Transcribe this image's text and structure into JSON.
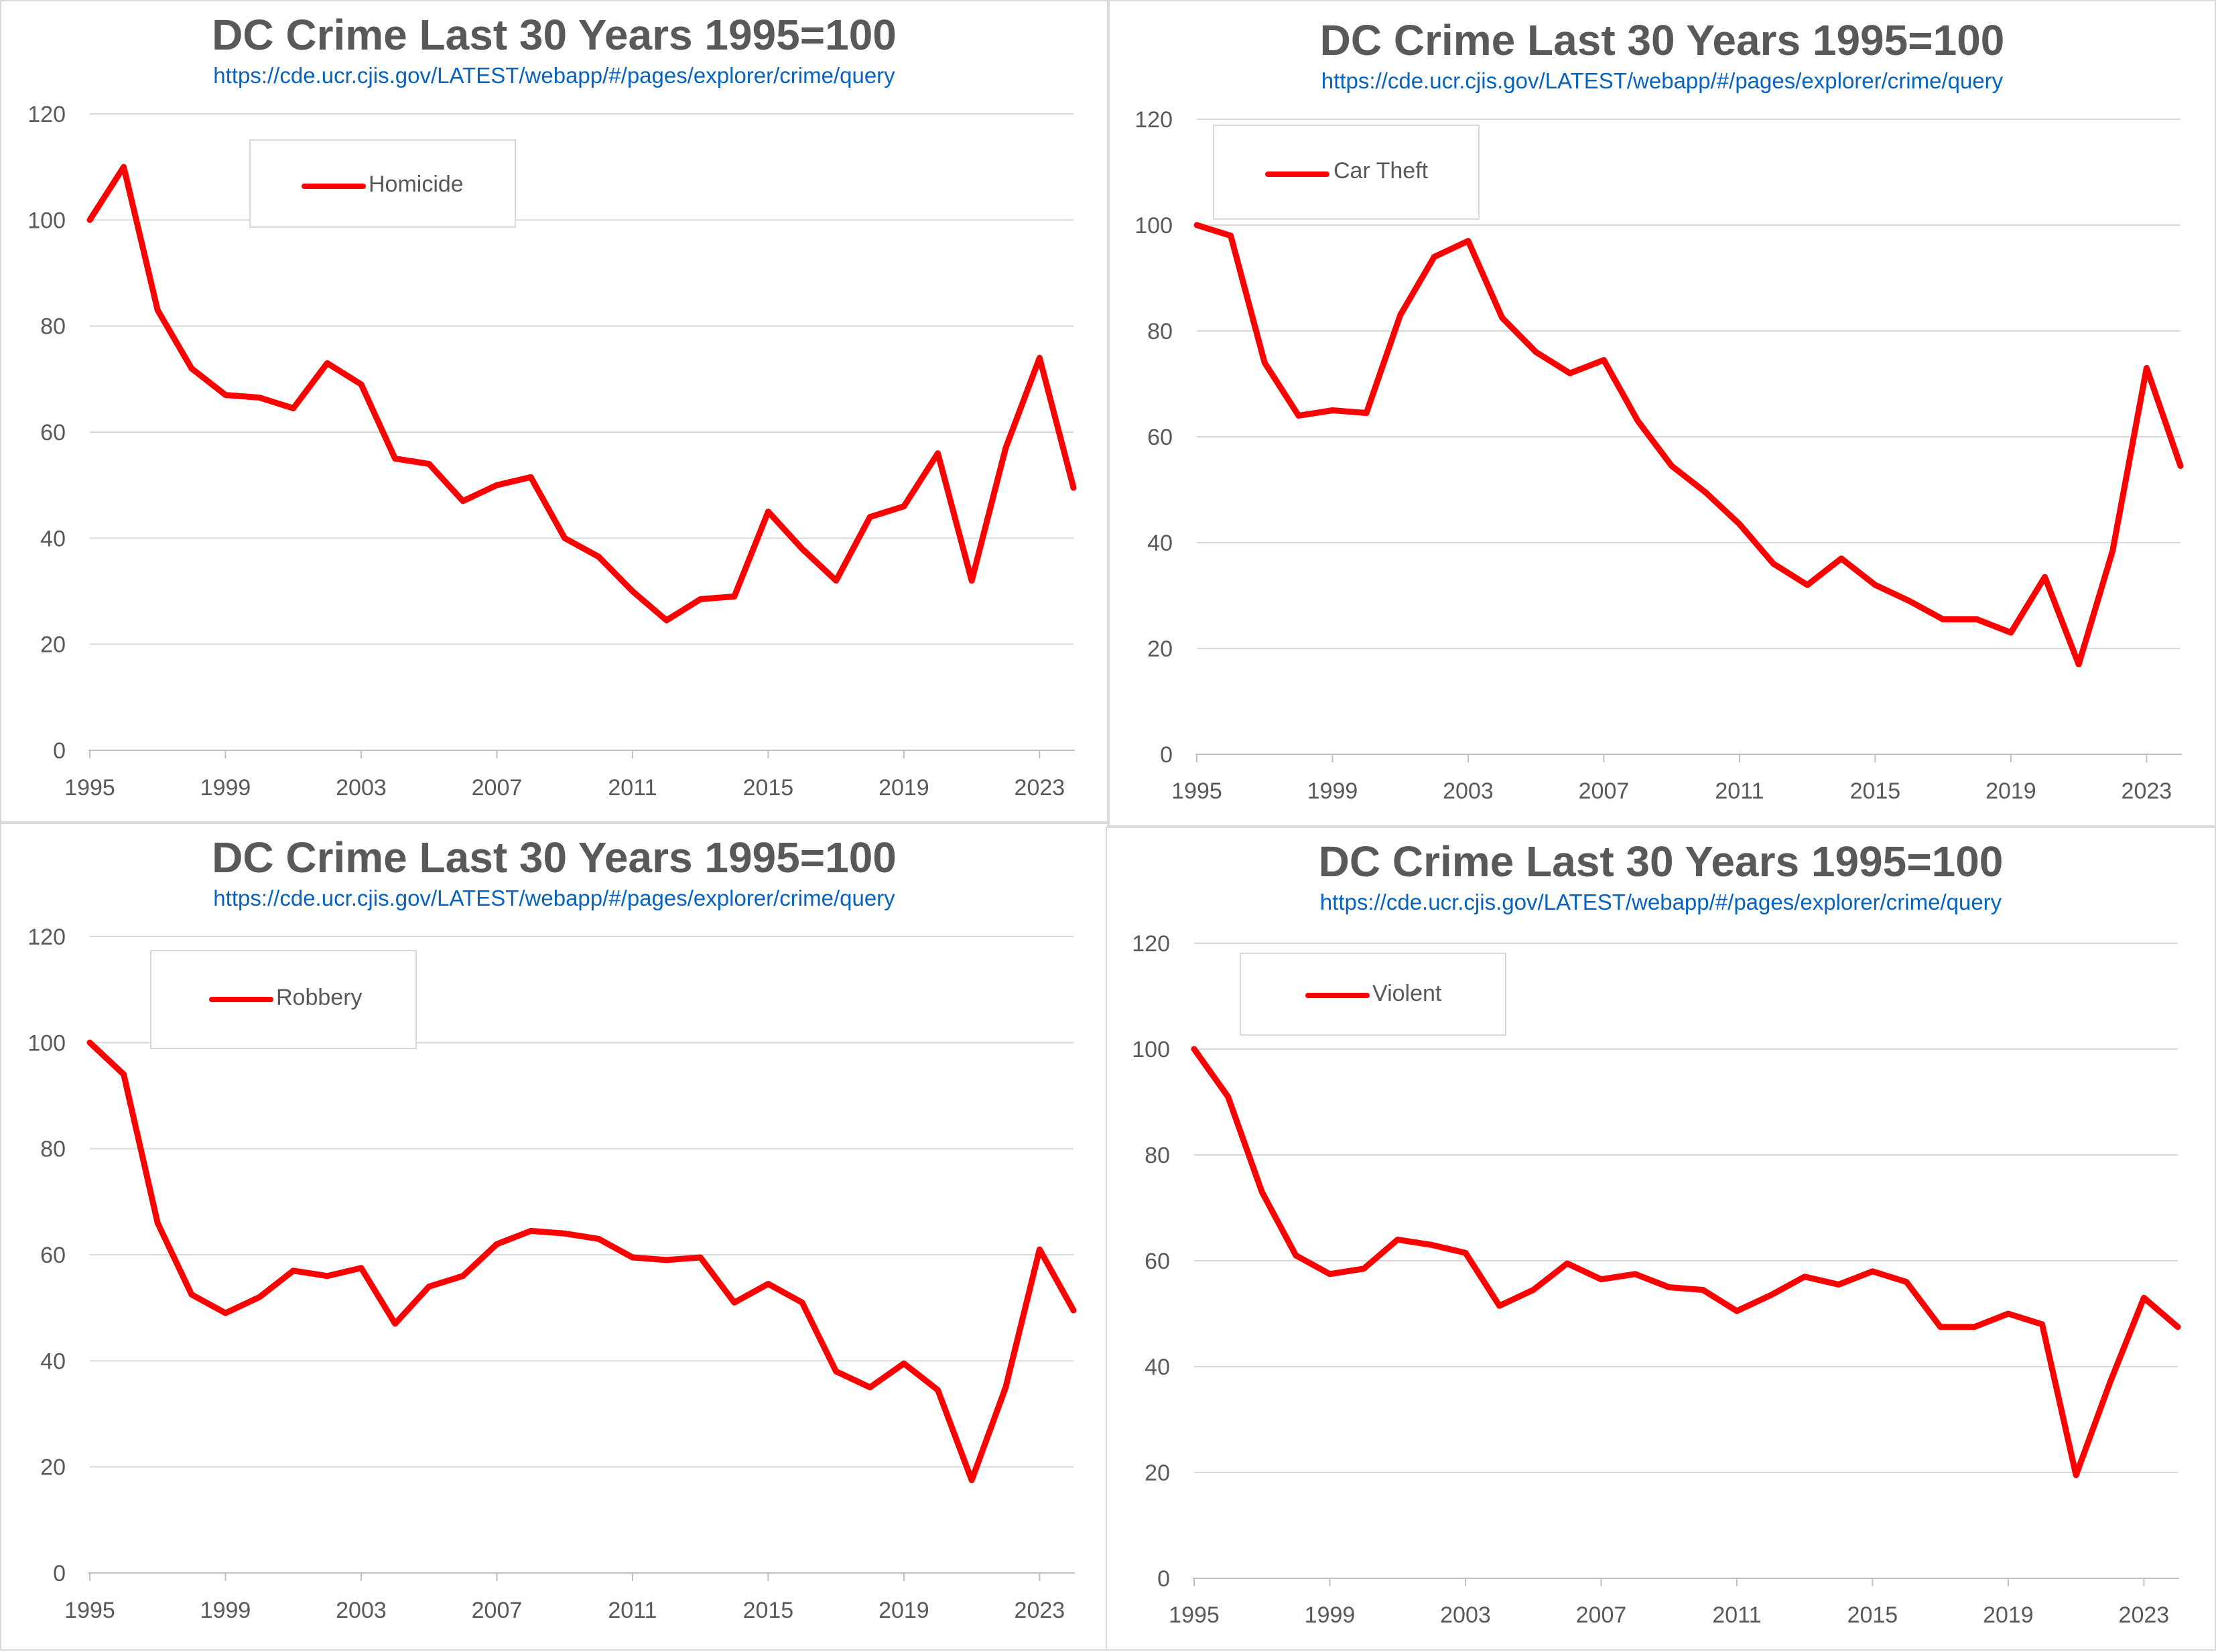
{
  "chart_data": [
    {
      "type": "line",
      "title": "DC Crime Last 30 Years 1995=100",
      "subtitle": "https://cde.ucr.cjis.gov/LATEST/webapp/#/pages/explorer/crime/query",
      "ylim": [
        0,
        120
      ],
      "yticks": [
        "0",
        "20",
        "40",
        "60",
        "80",
        "100",
        "120"
      ],
      "xticks": [
        "1995",
        "1999",
        "2003",
        "2007",
        "2011",
        "2015",
        "2019",
        "2023"
      ],
      "x": [
        1995,
        1996,
        1997,
        1998,
        1999,
        2000,
        2001,
        2002,
        2003,
        2004,
        2005,
        2006,
        2007,
        2008,
        2009,
        2010,
        2011,
        2012,
        2013,
        2014,
        2015,
        2016,
        2017,
        2018,
        2019,
        2020,
        2021,
        2022,
        2023,
        2024
      ],
      "series": [
        {
          "name": "Homicide",
          "color": "#ff0000",
          "values": [
            100,
            110,
            83,
            72,
            67,
            66.5,
            64.5,
            73,
            69,
            55,
            54,
            47,
            50,
            51.5,
            40,
            36.5,
            30,
            24.5,
            28.5,
            29,
            45,
            38,
            32,
            44,
            46,
            56,
            32,
            57,
            74,
            49.5
          ]
        }
      ],
      "legend": "top-left"
    },
    {
      "type": "line",
      "title": "DC Crime Last 30 Years 1995=100",
      "subtitle": "https://cde.ucr.cjis.gov/LATEST/webapp/#/pages/explorer/crime/query",
      "ylim": [
        0,
        120
      ],
      "yticks": [
        "0",
        "20",
        "40",
        "60",
        "80",
        "100",
        "120"
      ],
      "xticks": [
        "1995",
        "1999",
        "2003",
        "2007",
        "2011",
        "2015",
        "2019",
        "2023"
      ],
      "x": [
        1995,
        1996,
        1997,
        1998,
        1999,
        2000,
        2001,
        2002,
        2003,
        2004,
        2005,
        2006,
        2007,
        2008,
        2009,
        2010,
        2011,
        2012,
        2013,
        2014,
        2015,
        2016,
        2017,
        2018,
        2019,
        2020,
        2021,
        2022,
        2023,
        2024
      ],
      "series": [
        {
          "name": "Car Theft",
          "color": "#ff0000",
          "values": [
            100,
            98,
            74,
            64,
            65,
            64.5,
            83,
            94,
            97,
            82.5,
            76,
            72,
            74.5,
            63,
            54.5,
            49.5,
            43.5,
            36,
            32,
            37,
            32,
            29,
            25.5,
            25.5,
            23,
            33.5,
            17,
            38.5,
            73,
            54.5
          ]
        }
      ],
      "legend": "top-left"
    },
    {
      "type": "line",
      "title": "DC Crime Last 30 Years 1995=100",
      "subtitle": "https://cde.ucr.cjis.gov/LATEST/webapp/#/pages/explorer/crime/query",
      "ylim": [
        0,
        120
      ],
      "yticks": [
        "0",
        "20",
        "40",
        "60",
        "80",
        "100",
        "120"
      ],
      "xticks": [
        "1995",
        "1999",
        "2003",
        "2007",
        "2011",
        "2015",
        "2019",
        "2023"
      ],
      "x": [
        1995,
        1996,
        1997,
        1998,
        1999,
        2000,
        2001,
        2002,
        2003,
        2004,
        2005,
        2006,
        2007,
        2008,
        2009,
        2010,
        2011,
        2012,
        2013,
        2014,
        2015,
        2016,
        2017,
        2018,
        2019,
        2020,
        2021,
        2022,
        2023,
        2024
      ],
      "series": [
        {
          "name": "Robbery",
          "color": "#ff0000",
          "values": [
            100,
            94,
            66,
            52.5,
            49,
            52,
            57,
            56,
            57.5,
            47,
            54,
            56,
            62,
            64.5,
            64,
            63,
            59.5,
            59,
            59.5,
            51,
            54.5,
            51,
            38,
            35,
            39.5,
            34.5,
            17.5,
            35,
            61,
            49.5
          ]
        }
      ],
      "legend": "top-left"
    },
    {
      "type": "line",
      "title": "DC Crime Last 30 Years 1995=100",
      "subtitle": "https://cde.ucr.cjis.gov/LATEST/webapp/#/pages/explorer/crime/query",
      "ylim": [
        0,
        120
      ],
      "yticks": [
        "0",
        "20",
        "40",
        "60",
        "80",
        "100",
        "120"
      ],
      "xticks": [
        "1995",
        "1999",
        "2003",
        "2007",
        "2011",
        "2015",
        "2019",
        "2023"
      ],
      "x": [
        1995,
        1996,
        1997,
        1998,
        1999,
        2000,
        2001,
        2002,
        2003,
        2004,
        2005,
        2006,
        2007,
        2008,
        2009,
        2010,
        2011,
        2012,
        2013,
        2014,
        2015,
        2016,
        2017,
        2018,
        2019,
        2020,
        2021,
        2022,
        2023,
        2024
      ],
      "series": [
        {
          "name": "Violent",
          "color": "#ff0000",
          "values": [
            100,
            91,
            73,
            61,
            57.5,
            58.5,
            64,
            63,
            61.5,
            51.5,
            54.5,
            59.5,
            56.5,
            57.5,
            55,
            54.5,
            50.5,
            53.5,
            57,
            55.5,
            58,
            56,
            47.5,
            47.5,
            50,
            48,
            19.5,
            37,
            53,
            47.5
          ]
        }
      ],
      "legend": "top-left"
    }
  ]
}
